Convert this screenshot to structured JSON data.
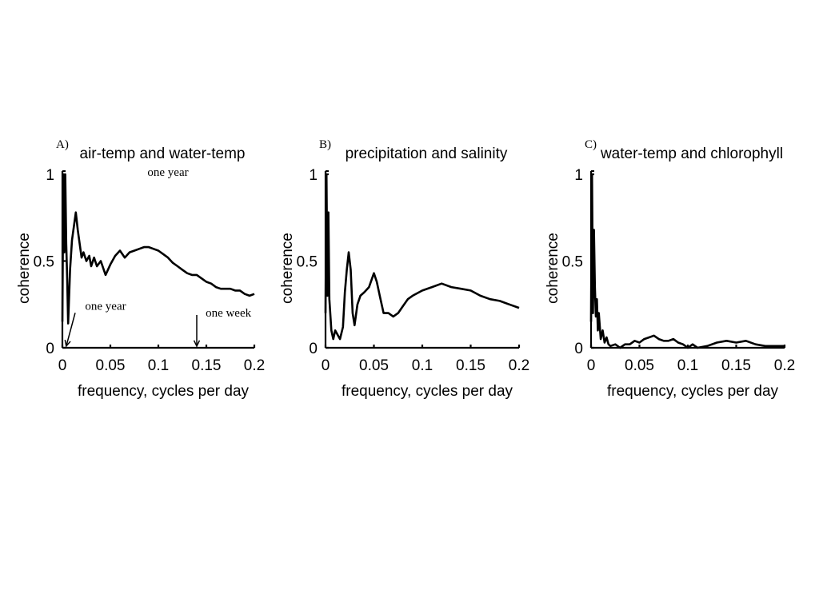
{
  "chart_data": [
    {
      "type": "line",
      "panel_label": "A)",
      "title": "air-temp and water-temp",
      "xlabel": "frequency, cycles per day",
      "ylabel": "coherence",
      "xlim": [
        0,
        0.2
      ],
      "ylim": [
        0,
        1
      ],
      "xticks": [
        "0",
        "0.05",
        "0.1",
        "0.15",
        "0.2"
      ],
      "yticks": [
        "0",
        "0.5",
        "1"
      ],
      "color": "#000000",
      "series": [
        {
          "name": "coherence",
          "x": [
            0,
            0.001,
            0.002,
            0.003,
            0.004,
            0.005,
            0.006,
            0.008,
            0.01,
            0.012,
            0.014,
            0.016,
            0.018,
            0.02,
            0.022,
            0.025,
            0.028,
            0.03,
            0.033,
            0.036,
            0.04,
            0.045,
            0.05,
            0.055,
            0.06,
            0.065,
            0.07,
            0.075,
            0.08,
            0.085,
            0.09,
            0.095,
            0.1,
            0.105,
            0.11,
            0.115,
            0.12,
            0.125,
            0.13,
            0.135,
            0.14,
            0.145,
            0.15,
            0.155,
            0.16,
            0.165,
            0.17,
            0.175,
            0.18,
            0.185,
            0.19,
            0.195,
            0.2
          ],
          "y": [
            0.15,
            1.0,
            0.55,
            1.0,
            0.6,
            0.4,
            0.14,
            0.45,
            0.62,
            0.7,
            0.78,
            0.68,
            0.6,
            0.52,
            0.55,
            0.5,
            0.53,
            0.47,
            0.52,
            0.47,
            0.5,
            0.42,
            0.48,
            0.53,
            0.56,
            0.52,
            0.55,
            0.56,
            0.57,
            0.58,
            0.58,
            0.57,
            0.56,
            0.54,
            0.52,
            0.49,
            0.47,
            0.45,
            0.43,
            0.42,
            0.42,
            0.4,
            0.38,
            0.37,
            0.35,
            0.34,
            0.34,
            0.34,
            0.33,
            0.33,
            0.31,
            0.3,
            0.31
          ]
        }
      ],
      "annotations": [
        {
          "text": "one year",
          "x": 0.11,
          "y": 0.99,
          "arrow": false
        },
        {
          "text": "one year",
          "x": 0.045,
          "y": 0.22,
          "arrow_to": [
            0.004,
            0.0
          ]
        },
        {
          "text": "one week",
          "x": 0.173,
          "y": 0.18,
          "arrow_to": [
            0.14,
            0.0
          ]
        }
      ]
    },
    {
      "type": "line",
      "panel_label": "B)",
      "title": "precipitation and salinity",
      "xlabel": "frequency, cycles per day",
      "ylabel": "coherence",
      "xlim": [
        0,
        0.2
      ],
      "ylim": [
        0,
        1
      ],
      "xticks": [
        "0",
        "0.05",
        "0.1",
        "0.15",
        "0.2"
      ],
      "yticks": [
        "0",
        "0.5",
        "1"
      ],
      "color": "#000000",
      "series": [
        {
          "name": "coherence",
          "x": [
            0,
            0.001,
            0.002,
            0.003,
            0.004,
            0.006,
            0.008,
            0.01,
            0.012,
            0.015,
            0.018,
            0.02,
            0.022,
            0.024,
            0.026,
            0.028,
            0.03,
            0.033,
            0.036,
            0.04,
            0.045,
            0.05,
            0.053,
            0.056,
            0.06,
            0.065,
            0.07,
            0.075,
            0.08,
            0.085,
            0.09,
            0.1,
            0.11,
            0.12,
            0.13,
            0.14,
            0.15,
            0.16,
            0.17,
            0.18,
            0.19,
            0.2
          ],
          "y": [
            0.2,
            1.0,
            0.3,
            0.78,
            0.28,
            0.1,
            0.05,
            0.1,
            0.08,
            0.05,
            0.12,
            0.32,
            0.45,
            0.55,
            0.45,
            0.2,
            0.13,
            0.25,
            0.3,
            0.32,
            0.35,
            0.43,
            0.38,
            0.3,
            0.2,
            0.2,
            0.18,
            0.2,
            0.24,
            0.28,
            0.3,
            0.33,
            0.35,
            0.37,
            0.35,
            0.34,
            0.33,
            0.3,
            0.28,
            0.27,
            0.25,
            0.23
          ]
        }
      ],
      "annotations": []
    },
    {
      "type": "line",
      "panel_label": "C)",
      "title": "water-temp and chlorophyll",
      "xlabel": "frequency, cycles per day",
      "ylabel": "coherence",
      "xlim": [
        0,
        0.2
      ],
      "ylim": [
        0,
        1
      ],
      "xticks": [
        "0",
        "0.05",
        "0.1",
        "0.15",
        "0.2"
      ],
      "yticks": [
        "0",
        "0.5",
        "1"
      ],
      "color": "#000000",
      "series": [
        {
          "name": "coherence",
          "x": [
            0,
            0.001,
            0.002,
            0.003,
            0.004,
            0.005,
            0.006,
            0.007,
            0.008,
            0.01,
            0.012,
            0.014,
            0.016,
            0.018,
            0.02,
            0.025,
            0.03,
            0.035,
            0.04,
            0.045,
            0.05,
            0.055,
            0.06,
            0.065,
            0.07,
            0.075,
            0.08,
            0.085,
            0.09,
            0.095,
            0.1,
            0.105,
            0.11,
            0.12,
            0.13,
            0.14,
            0.15,
            0.16,
            0.17,
            0.18,
            0.19,
            0.2
          ],
          "y": [
            0.15,
            1.0,
            0.2,
            0.68,
            0.35,
            0.18,
            0.28,
            0.1,
            0.2,
            0.05,
            0.1,
            0.03,
            0.06,
            0.02,
            0.01,
            0.02,
            0.0,
            0.02,
            0.02,
            0.04,
            0.03,
            0.05,
            0.06,
            0.07,
            0.05,
            0.04,
            0.04,
            0.05,
            0.03,
            0.02,
            0.0,
            0.02,
            0.0,
            0.01,
            0.03,
            0.04,
            0.03,
            0.04,
            0.02,
            0.01,
            0.01,
            0.01
          ]
        }
      ],
      "annotations": []
    }
  ]
}
